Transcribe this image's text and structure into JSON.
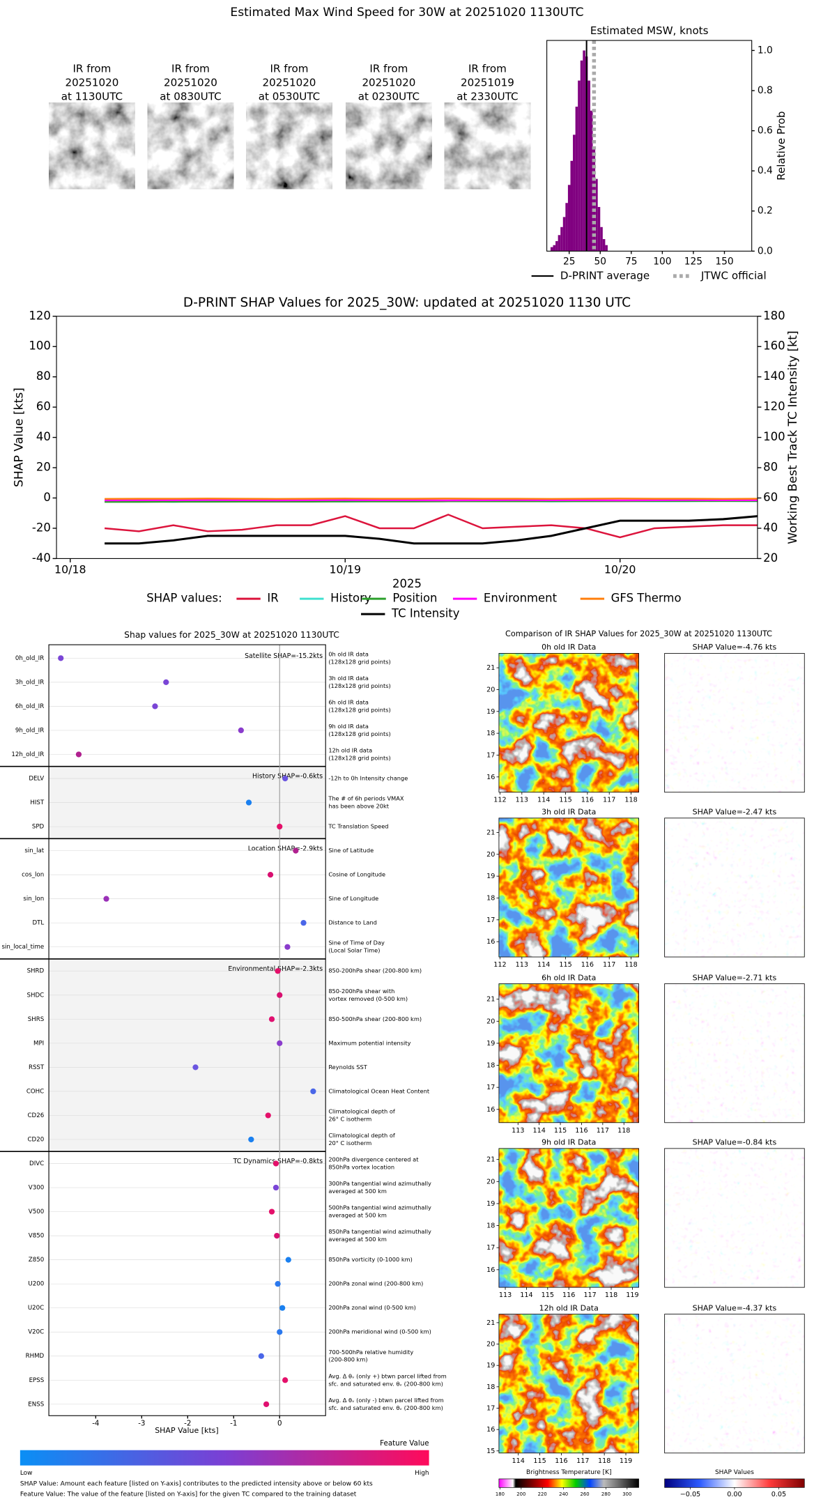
{
  "title": "Estimated Max Wind Speed for 30W at 20251020 1130UTC",
  "thumbnails": [
    [
      "IR from",
      "20251020",
      "at 1130UTC"
    ],
    [
      "IR from",
      "20251020",
      "at 0830UTC"
    ],
    [
      "IR from",
      "20251020",
      "at 0530UTC"
    ],
    [
      "IR from",
      "20251020",
      "at 0230UTC"
    ],
    [
      "IR from",
      "20251019",
      "at 2330UTC"
    ]
  ],
  "chart_data": [
    {
      "type": "histogram",
      "title": "Estimated MSW, knots",
      "bins": [
        10,
        12,
        14,
        16,
        18,
        20,
        22,
        24,
        26,
        28,
        30,
        32,
        34,
        36,
        38,
        40,
        42,
        44,
        46,
        48,
        50,
        52,
        54,
        56
      ],
      "values": [
        0.02,
        0.03,
        0.05,
        0.08,
        0.12,
        0.17,
        0.24,
        0.33,
        0.45,
        0.58,
        0.72,
        0.85,
        0.95,
        1.0,
        0.97,
        0.85,
        0.7,
        0.52,
        0.36,
        0.22,
        0.12,
        0.06,
        0.03
      ],
      "color": "#800080",
      "xlim": [
        7,
        172
      ],
      "xticks": [
        25,
        50,
        75,
        100,
        125,
        150
      ],
      "ylim": [
        0,
        1.05
      ],
      "yticks": [
        {
          "value": 0,
          "label": "0.0"
        },
        {
          "value": 0.2,
          "label": "0.2"
        },
        {
          "value": 0.4,
          "label": "0.4"
        },
        {
          "value": 0.6,
          "label": "0.6"
        },
        {
          "value": 0.8,
          "label": "0.8"
        },
        {
          "value": 1,
          "label": "1.0"
        }
      ],
      "y_label": "Relative Prob",
      "lines": [
        {
          "name": "D-PRINT average",
          "value": 39,
          "color": "#000000",
          "style": "solid"
        },
        {
          "name": "JTWC official",
          "value": 45,
          "color": "#aaaaaa",
          "style": "dotted"
        }
      ]
    },
    {
      "type": "line",
      "title": "D-PRINT SHAP Values for 2025_30W: updated at 20251020 1130 UTC",
      "x_label": "2025",
      "y_label": "SHAP Value [kts]",
      "y2_label": "Working Best Track TC Intensity [kt]",
      "legend_title": "SHAP values:",
      "x": [
        0.125,
        0.25,
        0.375,
        0.5,
        0.625,
        0.75,
        0.875,
        1.0,
        1.125,
        1.25,
        1.375,
        1.5,
        1.625,
        1.75,
        1.875,
        2.0,
        2.125,
        2.25,
        2.375,
        2.5
      ],
      "xlim": [
        -0.05,
        2.5
      ],
      "xticks": [
        {
          "value": 0,
          "label": "10/18"
        },
        {
          "value": 1,
          "label": "10/19"
        },
        {
          "value": 2,
          "label": "10/20"
        }
      ],
      "ylim": [
        -40,
        120
      ],
      "yticks": [
        -40,
        -20,
        0,
        20,
        40,
        60,
        80,
        100,
        120
      ],
      "y2lim": [
        20,
        180
      ],
      "y2ticks": [
        20,
        40,
        60,
        80,
        100,
        120,
        140,
        160,
        180
      ],
      "series": [
        {
          "name": "IR",
          "color": "#dc143c",
          "values": [
            -20,
            -22,
            -18,
            -22,
            -21,
            -18,
            -18,
            -12,
            -20,
            -20,
            -11,
            -20,
            -19,
            -18,
            -20,
            -26,
            -20,
            -19,
            -18,
            -18
          ]
        },
        {
          "name": "History",
          "color": "#40e0d0",
          "values": [
            -2.2,
            -2.0,
            -2.6,
            -2.1,
            -2.0,
            -2.2,
            -2.0,
            -2.4,
            -2.1,
            -2.0,
            -2.2,
            -2.1,
            -2.0,
            -2.3,
            -2.1,
            -2.0,
            -2.2,
            -2.1,
            -2.0,
            -2.1
          ]
        },
        {
          "name": "Position",
          "color": "#2ca02c",
          "values": [
            -2.6,
            -2.6,
            -2.5,
            -2.5,
            -2.4,
            -2.4,
            -2.4,
            -2.3,
            -2.3,
            -2.3,
            -2.2,
            -2.2,
            -2.2,
            -2.1,
            -2.1,
            -2.1,
            -2.0,
            -2.0,
            -2.0,
            -2.0
          ]
        },
        {
          "name": "Environment",
          "color": "#ff00ff",
          "values": [
            -1.6,
            -1.5,
            -1.5,
            -1.4,
            -1.5,
            -1.6,
            -1.5,
            -1.4,
            -1.5,
            -1.5,
            -1.6,
            -1.5,
            -1.4,
            -1.5,
            -1.5,
            -1.6,
            -1.5,
            -1.4,
            -1.5,
            -1.5
          ]
        },
        {
          "name": "GFS Thermo",
          "color": "#ff7f0e",
          "values": [
            -0.6,
            -0.5,
            -0.5,
            -0.4,
            -0.5,
            -0.6,
            -0.5,
            -0.4,
            -0.5,
            -0.5,
            -0.4,
            -0.5,
            -0.5,
            -0.6,
            -0.5,
            -0.4,
            -0.5,
            -0.5,
            -0.6,
            -0.5
          ]
        },
        {
          "name": "TC Intensity",
          "color": "#000000",
          "axis": "y2",
          "values": [
            30,
            30,
            32,
            35,
            35,
            35,
            35,
            35,
            33,
            30,
            30,
            30,
            32,
            35,
            40,
            45,
            45,
            45,
            46,
            48
          ]
        }
      ]
    },
    {
      "type": "dot",
      "title": "Shap values for 2025_30W at 20251020 1130UTC",
      "x_label": "SHAP Value [kts]",
      "xlim": [
        -5.02,
        1.0
      ],
      "xticks": [
        -4,
        -3,
        -2,
        -1,
        0
      ],
      "groups": [
        {
          "label": "Satellite SHAP=-15.2kts",
          "features": [
            {
              "name": "0h_old_IR",
              "value": -4.76,
              "color": "#7a45d6",
              "description": [
                "0h old IR data",
                "(128x128 grid points)"
              ]
            },
            {
              "name": "3h_old_IR",
              "value": -2.47,
              "color": "#7a45d6",
              "description": [
                "3h old IR data",
                "(128x128 grid points)"
              ]
            },
            {
              "name": "6h_old_IR",
              "value": -2.71,
              "color": "#7a45d6",
              "description": [
                "6h old IR data",
                "(128x128 grid points)"
              ]
            },
            {
              "name": "9h_old_IR",
              "value": -0.84,
              "color": "#8a3ccc",
              "description": [
                "9h old IR data",
                "(128x128 grid points)"
              ]
            },
            {
              "name": "12h_old_IR",
              "value": -4.37,
              "color": "#b0208f",
              "description": [
                "12h old IR data",
                "(128x128 grid points)"
              ]
            }
          ]
        },
        {
          "label": "History SHAP=-0.6kts",
          "features": [
            {
              "name": "DELV",
              "value": 0.12,
              "color": "#6a55e0",
              "description": [
                "-12h to 0h Intensity change"
              ]
            },
            {
              "name": "HIST",
              "value": -0.67,
              "color": "#1a80f0",
              "description": [
                "The # of 6h periods VMAX",
                "has been above 20kt"
              ]
            },
            {
              "name": "SPD",
              "value": 0.0,
              "color": "#e4106a",
              "description": [
                "TC Translation Speed"
              ]
            }
          ]
        },
        {
          "label": "Location SHAP=-2.9kts",
          "features": [
            {
              "name": "sin_lat",
              "value": 0.35,
              "color": "#b0208f",
              "description": [
                "Sine of Latitude"
              ]
            },
            {
              "name": "cos_lon",
              "value": -0.2,
              "color": "#d81070",
              "description": [
                "Cosine of Longitude"
              ]
            },
            {
              "name": "sin_lon",
              "value": -3.77,
              "color": "#9a30b8",
              "description": [
                "Sine of Longitude"
              ]
            },
            {
              "name": "DTL",
              "value": 0.52,
              "color": "#4a66e8",
              "description": [
                "Distance to Land"
              ]
            },
            {
              "name": "sin_local_time",
              "value": 0.17,
              "color": "#8a3ccc",
              "description": [
                "Sine of Time of Day",
                "(Local Solar Time)"
              ]
            }
          ]
        },
        {
          "label": "Environmental SHAP=-2.3kts",
          "features": [
            {
              "name": "SHRD",
              "value": -0.04,
              "color": "#e4106a",
              "description": [
                "850-200hPa shear (200-800 km)"
              ]
            },
            {
              "name": "SHDC",
              "value": 0.0,
              "color": "#d81070",
              "description": [
                "850-200hPa shear with",
                "vortex removed (0-500 km)"
              ]
            },
            {
              "name": "SHRS",
              "value": -0.17,
              "color": "#e01070",
              "description": [
                "850-500hPa shear (200-800 km)"
              ]
            },
            {
              "name": "MPI",
              "value": 0.0,
              "color": "#8a3ccc",
              "description": [
                "Maximum potential intensity"
              ]
            },
            {
              "name": "RSST",
              "value": -1.83,
              "color": "#6a55e0",
              "description": [
                "Reynolds SST"
              ]
            },
            {
              "name": "COHC",
              "value": 0.73,
              "color": "#4a66e8",
              "description": [
                "Climatological Ocean Heat Content"
              ]
            },
            {
              "name": "CD26",
              "value": -0.25,
              "color": "#e4106a",
              "description": [
                "Climatological depth of",
                "26° C isotherm"
              ]
            },
            {
              "name": "CD20",
              "value": -0.62,
              "color": "#1a80f0",
              "description": [
                "Climatological depth of",
                "20° C isotherm"
              ]
            }
          ]
        },
        {
          "label": "TC Dynamics SHAP=-0.8kts",
          "features": [
            {
              "name": "DIVC",
              "value": -0.08,
              "color": "#e4106a",
              "description": [
                "200hPa divergence centered at",
                "850hPa vortex location"
              ]
            },
            {
              "name": "V300",
              "value": -0.08,
              "color": "#7a45d6",
              "description": [
                "300hPa tangential wind azimuthally",
                "averaged at 500 km"
              ]
            },
            {
              "name": "V500",
              "value": -0.17,
              "color": "#e4106a",
              "description": [
                "500hPa tangential wind azimuthally",
                "averaged at 500 km"
              ]
            },
            {
              "name": "V850",
              "value": -0.06,
              "color": "#d81070",
              "description": [
                "850hPa tangential wind azimuthally",
                "averaged at 500 km"
              ]
            },
            {
              "name": "Z850",
              "value": 0.19,
              "color": "#1a80f0",
              "description": [
                "850hPa vorticity (0-1000 km)"
              ]
            },
            {
              "name": "U200",
              "value": -0.04,
              "color": "#2a78ee",
              "description": [
                "200hPa zonal wind (200-800 km)"
              ]
            },
            {
              "name": "U20C",
              "value": 0.06,
              "color": "#1a80f0",
              "description": [
                "200hPa zonal wind (0-500 km)"
              ]
            },
            {
              "name": "V20C",
              "value": 0.0,
              "color": "#2a78ee",
              "description": [
                "200hPa meridional wind (0-500 km)"
              ]
            },
            {
              "name": "RHMD",
              "value": -0.4,
              "color": "#4a66e8",
              "description": [
                "700-500hPa relative humidity",
                "(200-800 km)"
              ]
            },
            {
              "name": "EPSS",
              "value": 0.12,
              "color": "#e4106a",
              "description": [
                "Avg. Δ θᵥ (only +) btwn parcel lifted from",
                "sfc. and saturated env. θᵥ (200-800 km)"
              ]
            },
            {
              "name": "ENSS",
              "value": -0.29,
              "color": "#e01070",
              "description": [
                "Avg. Δ θᵥ (only -) btwn parcel lifted from",
                "sfc. and saturated env. θᵥ (200-800 km)"
              ]
            }
          ]
        }
      ],
      "colorbar": {
        "label": "Feature Value",
        "low": "Low",
        "high": "High",
        "colors": [
          "#0a8ff5",
          "#7b3fd4",
          "#ff0a5a"
        ]
      },
      "notes": [
        "SHAP Value: Amount each feature [listed on Y-axis] contributes to the predicted intensity above or below 60 kts",
        "Feature Value: The value of the feature [listed on Y-axis] for the given TC compared to the training dataset"
      ]
    }
  ],
  "ir_comparison": {
    "title": "Comparison of IR SHAP Values for 2025_30W at 20251020 1130UTC",
    "panels": [
      {
        "ir_title": "0h old IR Data",
        "shap_title": "SHAP Value=-4.76 kts",
        "xlim": [
          111.95,
          118.35
        ],
        "ylim": [
          15.3,
          21.66
        ],
        "xticks": [
          112,
          113,
          114,
          115,
          116,
          117,
          118
        ],
        "yticks": [
          16,
          17,
          18,
          19,
          20,
          21
        ]
      },
      {
        "ir_title": "3h old IR Data",
        "shap_title": "SHAP Value=-2.47 kts",
        "xlim": [
          111.95,
          118.35
        ],
        "ylim": [
          15.3,
          21.66
        ],
        "xticks": [
          112,
          113,
          114,
          115,
          116,
          117,
          118
        ],
        "yticks": [
          16,
          17,
          18,
          19,
          20,
          21
        ]
      },
      {
        "ir_title": "6h old IR Data",
        "shap_title": "SHAP Value=-2.71 kts",
        "xlim": [
          112.1,
          118.7
        ],
        "ylim": [
          15.4,
          21.7
        ],
        "xticks": [
          113,
          114,
          115,
          116,
          117,
          118
        ],
        "yticks": [
          16,
          17,
          18,
          19,
          20,
          21
        ]
      },
      {
        "ir_title": "9h old IR Data",
        "shap_title": "SHAP Value=-0.84 kts",
        "xlim": [
          112.7,
          119.3
        ],
        "ylim": [
          15.2,
          21.5
        ],
        "xticks": [
          113,
          114,
          115,
          116,
          117,
          118,
          119
        ],
        "yticks": [
          16,
          17,
          18,
          19,
          20,
          21
        ]
      },
      {
        "ir_title": "12h old IR Data",
        "shap_title": "SHAP Value=-4.37 kts",
        "xlim": [
          113.1,
          119.6
        ],
        "ylim": [
          14.9,
          21.4
        ],
        "xticks": [
          114,
          115,
          116,
          117,
          118,
          119
        ],
        "yticks": [
          15,
          16,
          17,
          18,
          19,
          20,
          21
        ]
      }
    ],
    "bt_colorbar": {
      "label": "Brightness Temperature [K]",
      "lim": [
        179,
        311
      ],
      "ticks": [
        180,
        200,
        220,
        240,
        260,
        280,
        300
      ]
    },
    "shap_colorbar": {
      "label": "SHAP Values",
      "lim": [
        -0.079,
        0.079
      ],
      "ticks": [
        {
          "value": -0.05,
          "label": "−0.05"
        },
        {
          "value": 0,
          "label": "0.00"
        },
        0.05
      ]
    }
  }
}
